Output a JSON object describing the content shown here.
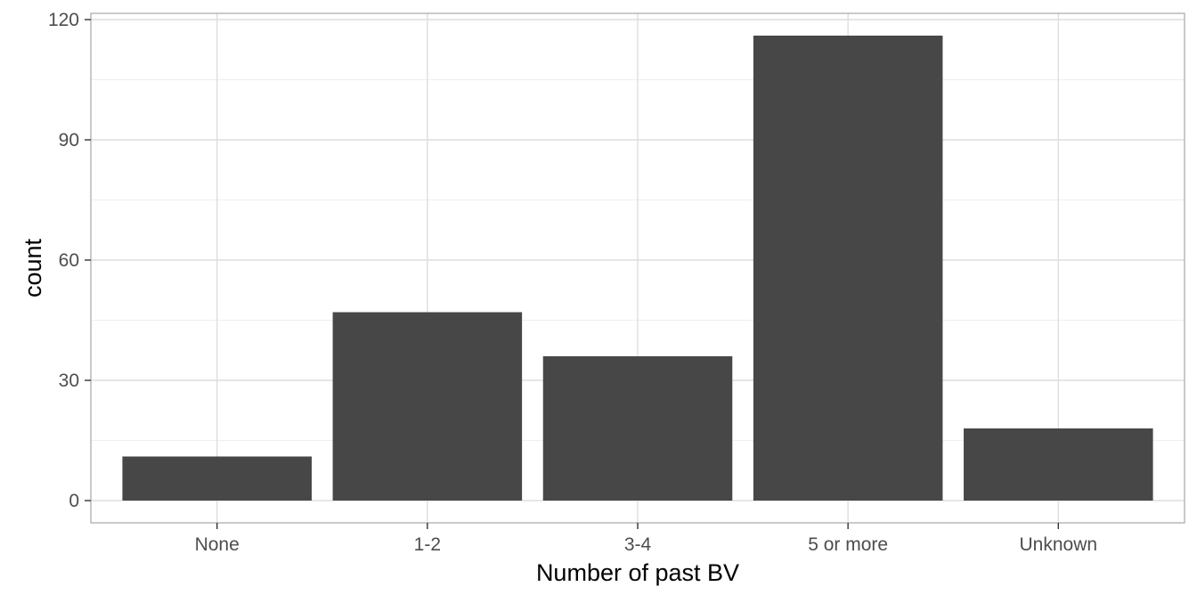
{
  "chart_data": {
    "type": "bar",
    "categories": [
      "None",
      "1-2",
      "3-4",
      "5 or more",
      "Unknown"
    ],
    "values": [
      11,
      47,
      36,
      116,
      18
    ],
    "xlabel": "Number of past BV",
    "ylabel": "count",
    "ylim": [
      0,
      120
    ],
    "yticks": [
      0,
      30,
      60,
      90,
      120
    ],
    "grid": true,
    "legend": "none",
    "colors": {
      "bar": "#474747",
      "grid_major": "#dedede",
      "grid_minor": "#efefef",
      "panel_border": "#b3b3b3",
      "background": "#ffffff"
    }
  }
}
